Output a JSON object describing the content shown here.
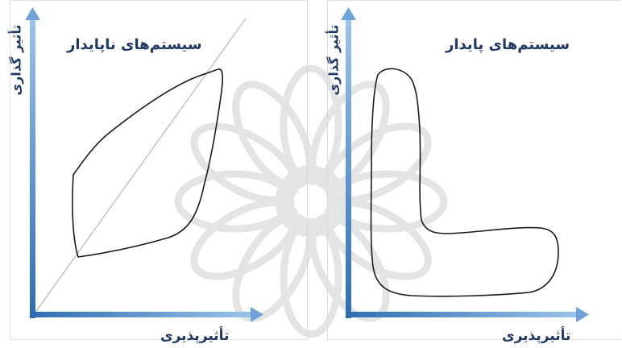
{
  "diagrams": [
    {
      "id": "unstable",
      "title": "سیستم‌های ناپایدار",
      "y_axis_label": "تأثیر گذاری",
      "x_axis_label": "تأثیرپذیری",
      "has_diagonal_line": true,
      "shape": "leaf"
    },
    {
      "id": "stable",
      "title": "سیستم‌های پایدار",
      "y_axis_label": "تأثیر گذاری",
      "x_axis_label": "تأثیرپذیری",
      "has_diagonal_line": false,
      "shape": "L"
    }
  ],
  "colors": {
    "axis": "#4a86c5",
    "text": "#1f3864",
    "outline": "#1a1a1a",
    "diagonal": "#b8b8b8",
    "watermark": "#dcdcdc"
  },
  "watermark_icon": "rosette-logo-icon"
}
